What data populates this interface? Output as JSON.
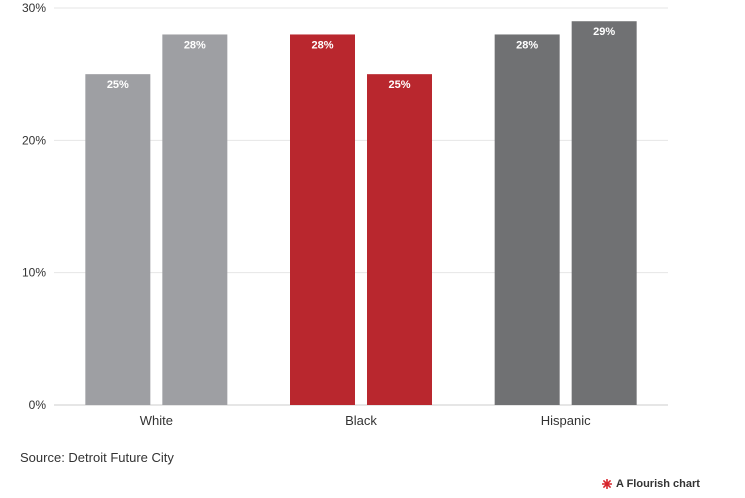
{
  "chart_data": {
    "type": "bar",
    "categories": [
      "White",
      "Black",
      "Hispanic"
    ],
    "values": [
      [
        25,
        28
      ],
      [
        28,
        25
      ],
      [
        28,
        29
      ]
    ],
    "value_labels": [
      [
        "25%",
        "28%"
      ],
      [
        "28%",
        "25%"
      ],
      [
        "28%",
        "29%"
      ]
    ],
    "bar_colors": [
      [
        "#9e9fa3",
        "#9e9fa3"
      ],
      [
        "#b9272e",
        "#b9272e"
      ],
      [
        "#707173",
        "#707173"
      ]
    ],
    "ylim": [
      0,
      30
    ],
    "yticks": [
      0,
      10,
      20,
      30
    ],
    "ytick_labels": [
      "0%",
      "10%",
      "20%",
      "30%"
    ],
    "grid": true,
    "legend": "none"
  },
  "footer": {
    "source": "Source: Detroit Future City",
    "credit": "A Flourish chart",
    "credit_icon": "flourish-logo-icon",
    "credit_color": "#d6232a"
  }
}
